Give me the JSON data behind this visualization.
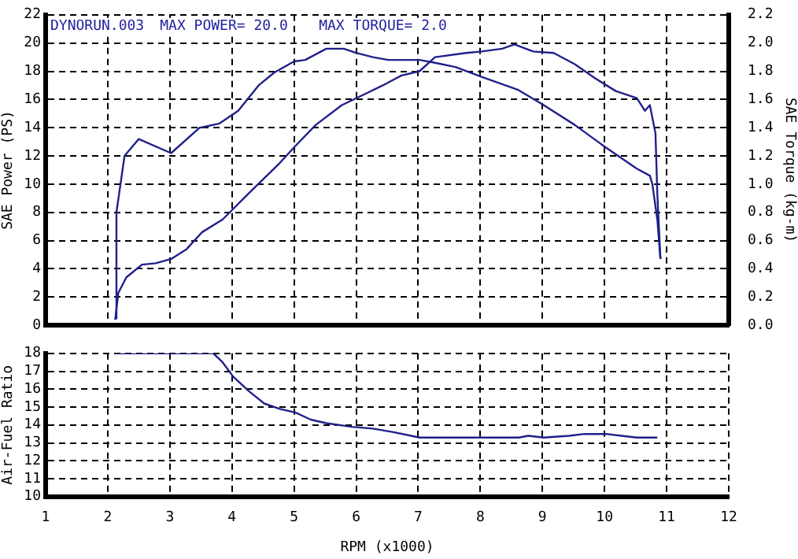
{
  "chart_data": [
    {
      "type": "line",
      "ylabel": "SAE Power (PS)",
      "y2label": "SAE Torque (kg-m)",
      "annotations": [
        "DYNORUN.003",
        "MAX POWER= 20.0",
        "MAX TORQUE= 2.0"
      ],
      "xlim": [
        1,
        12
      ],
      "xticks": [
        1,
        2,
        3,
        4,
        5,
        6,
        7,
        8,
        9,
        10,
        11,
        12
      ],
      "ylim": [
        0,
        22
      ],
      "yticks": [
        0,
        2,
        4,
        6,
        8,
        10,
        12,
        14,
        16,
        18,
        20,
        22
      ],
      "y2lim": [
        0,
        2.2
      ],
      "y2ticks": [
        {
          "value": 0,
          "label": "0.0"
        },
        0.2,
        0.4,
        0.6,
        0.8,
        {
          "value": 1,
          "label": "1.0"
        },
        1.2,
        1.4,
        1.6,
        1.8,
        {
          "value": 2,
          "label": "2.0"
        },
        2.2
      ],
      "tick_labels": "y",
      "grid": true,
      "marker": "none",
      "series": [
        {
          "color": "#20208a",
          "x": [
            2.12,
            2.17,
            2.3,
            2.55,
            2.77,
            3.02,
            3.27,
            3.52,
            3.85,
            4.1,
            4.35,
            4.77,
            5.02,
            5.35,
            5.77,
            6.1,
            6.43,
            6.73,
            7.02,
            7.27,
            7.77,
            8.02,
            8.35,
            8.55,
            8.85,
            9.18,
            9.52,
            9.85,
            10.18,
            10.52,
            10.65,
            10.73,
            10.82,
            10.85,
            10.9
          ],
          "values": [
            0.4,
            2.3,
            3.4,
            4.3,
            4.4,
            4.7,
            5.4,
            6.6,
            7.5,
            8.6,
            9.7,
            11.5,
            12.7,
            14.2,
            15.6,
            16.3,
            17.0,
            17.7,
            18.0,
            19.0,
            19.3,
            19.4,
            19.6,
            19.9,
            19.4,
            19.3,
            18.5,
            17.5,
            16.6,
            16.1,
            15.2,
            15.6,
            13.6,
            9.3,
            4.7
          ]
        },
        {
          "color": "#20208a",
          "axis": "y2",
          "x": [
            2.12,
            2.14,
            2.27,
            2.5,
            3.02,
            3.48,
            3.8,
            4.1,
            4.43,
            4.68,
            5.0,
            5.18,
            5.52,
            5.8,
            6.0,
            6.27,
            6.52,
            7.02,
            7.27,
            7.6,
            8.02,
            8.6,
            9.02,
            9.52,
            10.02,
            10.52,
            10.73,
            10.77,
            10.85,
            10.9
          ],
          "values": [
            0.05,
            0.8,
            1.2,
            1.32,
            1.22,
            1.4,
            1.43,
            1.52,
            1.7,
            1.79,
            1.87,
            1.88,
            1.96,
            1.96,
            1.93,
            1.9,
            1.88,
            1.88,
            1.86,
            1.83,
            1.76,
            1.67,
            1.56,
            1.42,
            1.26,
            1.11,
            1.06,
            1.0,
            0.75,
            0.47
          ]
        }
      ]
    },
    {
      "type": "line",
      "xlabel": "RPM (x1000)",
      "ylabel": "Air-Fuel Ratio",
      "xlim": [
        1,
        12
      ],
      "xticks": [
        1,
        2,
        3,
        4,
        5,
        6,
        7,
        8,
        9,
        10,
        11,
        12
      ],
      "ylim": [
        10,
        18
      ],
      "yticks": [
        10,
        11,
        12,
        13,
        14,
        15,
        16,
        17,
        18
      ],
      "grid": true,
      "marker": "none",
      "series": [
        {
          "color": "#20208a",
          "x": [
            2.12,
            3.7,
            3.85,
            4.02,
            4.27,
            4.52,
            4.77,
            5.02,
            5.27,
            5.52,
            5.93,
            6.27,
            6.6,
            7.02,
            8.62,
            8.77,
            9.02,
            9.43,
            9.68,
            10.02,
            10.27,
            10.52,
            10.85
          ],
          "values": [
            18,
            18,
            17.5,
            16.7,
            15.9,
            15.2,
            14.9,
            14.7,
            14.3,
            14.1,
            13.9,
            13.8,
            13.6,
            13.3,
            13.3,
            13.4,
            13.3,
            13.4,
            13.5,
            13.5,
            13.4,
            13.3,
            13.3
          ]
        }
      ]
    }
  ]
}
